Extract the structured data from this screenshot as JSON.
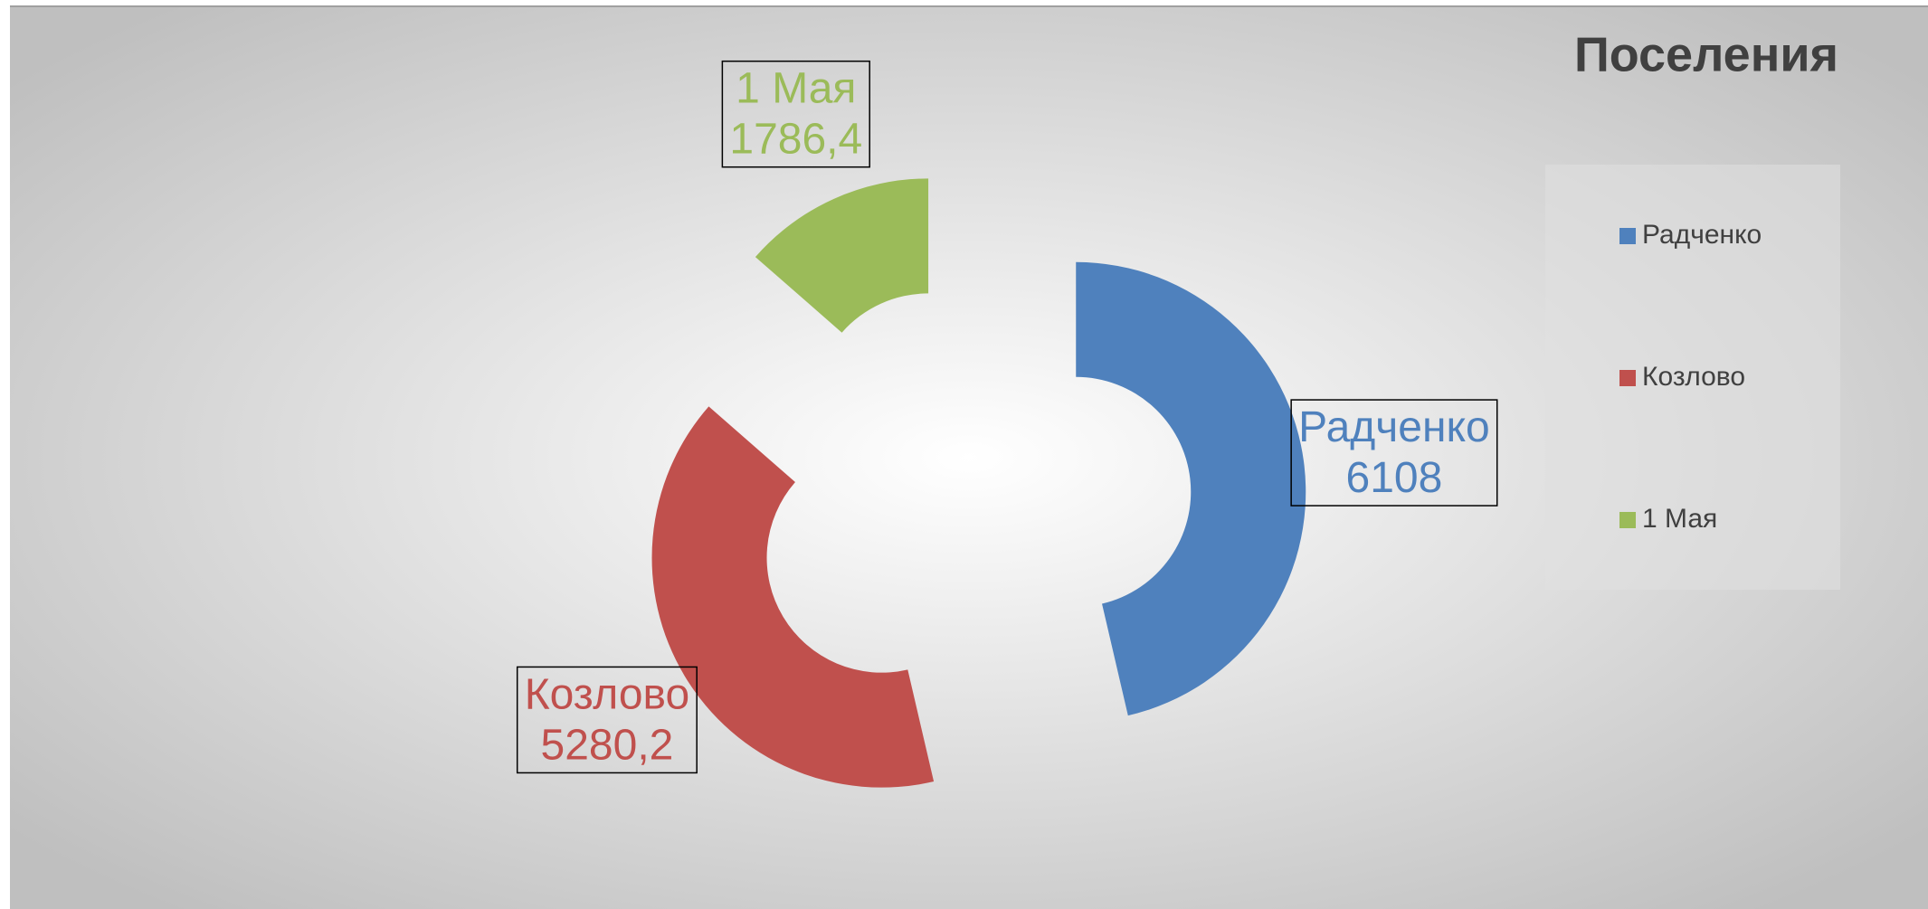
{
  "chart_data": {
    "type": "doughnut",
    "title": "Поселения",
    "categories": [
      "Радченко",
      "Козлово",
      "1 Мая"
    ],
    "values": [
      6108,
      5280.2,
      1786.4
    ],
    "value_labels": [
      "6108",
      "5280,2",
      "1786,4"
    ],
    "colors": [
      "#4f81bd",
      "#c0504d",
      "#9bbb59"
    ],
    "exploded": true,
    "legend": "right"
  }
}
